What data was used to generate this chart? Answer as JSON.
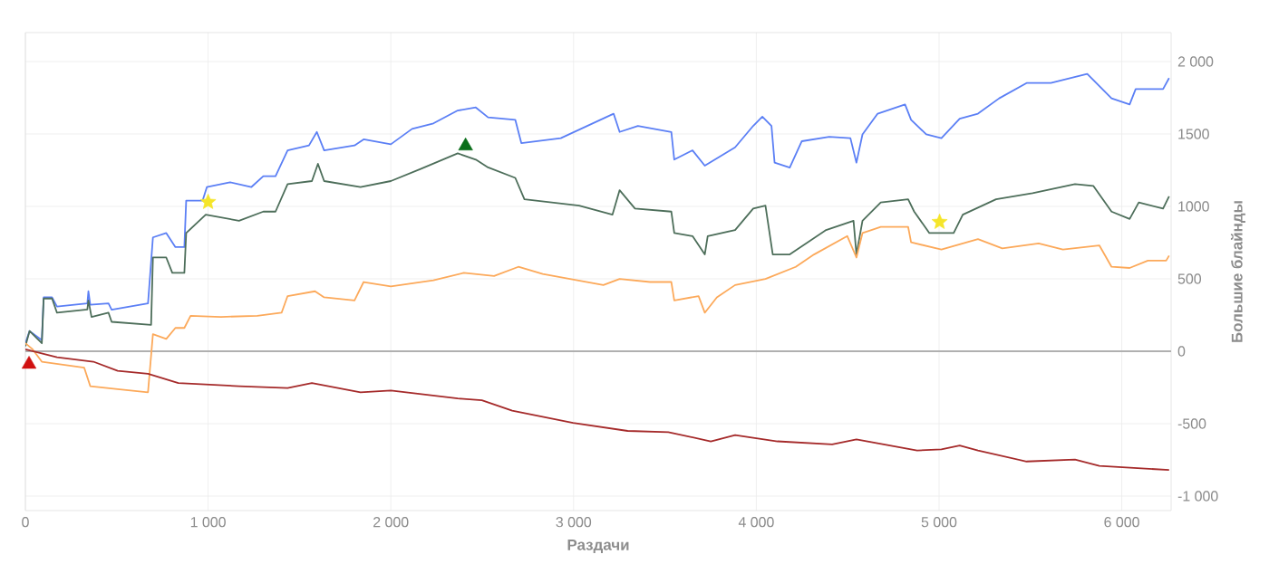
{
  "chart_data": {
    "type": "line",
    "xlabel": "Раздачи",
    "ylabel": "Большие блайнды",
    "grid": true,
    "marker": "none",
    "line_style": "solid",
    "xlim": [
      0,
      6270
    ],
    "ylim": [
      -1100,
      2200
    ],
    "xticks": [
      0,
      {
        "value": 1000,
        "label": "1 000"
      },
      {
        "value": 2000,
        "label": "2 000"
      },
      {
        "value": 3000,
        "label": "3 000"
      },
      {
        "value": 4000,
        "label": "4 000"
      },
      {
        "value": 5000,
        "label": "5 000"
      },
      {
        "value": 6000,
        "label": "6 000"
      }
    ],
    "yticks": [
      {
        "value": -1000,
        "label": "-1 000"
      },
      -500,
      0,
      500,
      1000,
      1500,
      {
        "value": 2000,
        "label": "2 000"
      }
    ],
    "ref_lines": [
      {
        "axis": "y",
        "value": 0,
        "color": "#b0b0b0"
      }
    ],
    "series": [
      {
        "color": "#5b7ff5",
        "x": [
          0,
          23,
          90,
          100,
          146,
          173,
          339,
          345,
          355,
          455,
          472,
          671,
          698,
          771,
          821,
          870,
          880,
          970,
          993,
          1120,
          1236,
          1302,
          1369,
          1435,
          1552,
          1595,
          1635,
          1801,
          1851,
          2000,
          2116,
          2233,
          2366,
          2465,
          2532,
          2681,
          2714,
          2930,
          3219,
          3252,
          3352,
          3535,
          3551,
          3651,
          3718,
          3884,
          3983,
          4033,
          4083,
          4100,
          4183,
          4249,
          4399,
          4515,
          4548,
          4581,
          4664,
          4814,
          4847,
          4930,
          5013,
          5113,
          5213,
          5329,
          5479,
          5612,
          5811,
          5944,
          6043,
          6076,
          6226,
          6259
        ],
        "values": [
          55,
          140,
          76,
          372,
          372,
          309,
          330,
          414,
          321,
          330,
          287,
          330,
          786,
          816,
          719,
          719,
          1040,
          1040,
          1133,
          1167,
          1133,
          1209,
          1209,
          1387,
          1421,
          1514,
          1387,
          1421,
          1463,
          1429,
          1535,
          1573,
          1662,
          1683,
          1615,
          1598,
          1437,
          1471,
          1640,
          1514,
          1556,
          1514,
          1323,
          1387,
          1281,
          1408,
          1556,
          1619,
          1556,
          1302,
          1268,
          1450,
          1480,
          1471,
          1302,
          1497,
          1640,
          1704,
          1598,
          1497,
          1471,
          1606,
          1640,
          1746,
          1852,
          1852,
          1915,
          1746,
          1704,
          1810,
          1810,
          1886
        ]
      },
      {
        "color": "#4d6e5a",
        "x": [
          0,
          23,
          90,
          100,
          146,
          173,
          339,
          345,
          362,
          455,
          472,
          688,
          698,
          771,
          804,
          870,
          880,
          987,
          1169,
          1302,
          1369,
          1435,
          1568,
          1601,
          1635,
          1834,
          2000,
          2166,
          2366,
          2465,
          2532,
          2681,
          2731,
          3030,
          3213,
          3252,
          3336,
          3535,
          3551,
          3651,
          3718,
          3734,
          3884,
          3983,
          4050,
          4090,
          4183,
          4382,
          4532,
          4548,
          4581,
          4681,
          4831,
          4864,
          4947,
          5080,
          5130,
          5312,
          5512,
          5744,
          5844,
          5944,
          6043,
          6093,
          6226,
          6259
        ],
        "values": [
          34,
          140,
          55,
          364,
          364,
          266,
          288,
          351,
          237,
          266,
          203,
          182,
          647,
          647,
          541,
          541,
          816,
          943,
          901,
          964,
          964,
          1154,
          1175,
          1294,
          1175,
          1133,
          1175,
          1260,
          1366,
          1323,
          1269,
          1197,
          1049,
          1006,
          943,
          1112,
          985,
          964,
          816,
          795,
          668,
          795,
          837,
          985,
          1006,
          668,
          668,
          837,
          901,
          668,
          901,
          1027,
          1049,
          964,
          816,
          816,
          943,
          1049,
          1091,
          1154,
          1142,
          964,
          913,
          1027,
          985,
          1070
        ]
      },
      {
        "color": "#fca95a",
        "x": [
          0,
          40,
          90,
          322,
          355,
          505,
          671,
          698,
          771,
          821,
          870,
          904,
          1070,
          1269,
          1402,
          1435,
          1585,
          1635,
          1801,
          1851,
          2000,
          2233,
          2399,
          2565,
          2698,
          2831,
          3163,
          3252,
          3419,
          3535,
          3551,
          3684,
          3718,
          3784,
          3884,
          4050,
          4216,
          4316,
          4498,
          4548,
          4581,
          4681,
          4831,
          4847,
          5013,
          5213,
          5346,
          5545,
          5678,
          5877,
          5944,
          6043,
          6143,
          6243,
          6259
        ],
        "values": [
          55,
          13,
          -72,
          -114,
          -241,
          -262,
          -283,
          118,
          85,
          161,
          161,
          245,
          237,
          245,
          266,
          381,
          414,
          372,
          351,
          478,
          448,
          490,
          541,
          520,
          583,
          533,
          457,
          499,
          478,
          478,
          351,
          381,
          266,
          372,
          457,
          499,
          583,
          668,
          795,
          647,
          816,
          858,
          858,
          752,
          702,
          774,
          710,
          744,
          702,
          731,
          583,
          575,
          626,
          626,
          660
        ]
      },
      {
        "color": "#a52a2a",
        "x": [
          0,
          173,
          372,
          505,
          671,
          837,
          1169,
          1435,
          1568,
          1834,
          2000,
          2366,
          2498,
          2664,
          2997,
          3296,
          3518,
          3751,
          3884,
          4116,
          4415,
          4548,
          4880,
          5013,
          5113,
          5213,
          5479,
          5744,
          5877,
          6259
        ],
        "values": [
          13,
          -42,
          -72,
          -135,
          -156,
          -220,
          -241,
          -254,
          -220,
          -283,
          -271,
          -326,
          -338,
          -410,
          -495,
          -550,
          -558,
          -622,
          -579,
          -622,
          -643,
          -609,
          -685,
          -677,
          -651,
          -685,
          -761,
          -748,
          -791,
          -820
        ]
      },
      {
        "type": "scatter",
        "marker": "triangle",
        "color": "#d01010",
        "x": [
          20
        ],
        "values": [
          -90
        ]
      },
      {
        "type": "scatter",
        "marker": "star",
        "color": "#f5e52a",
        "x": [
          1000,
          5003
        ],
        "values": [
          1030,
          892
        ]
      },
      {
        "type": "scatter",
        "marker": "triangle",
        "color": "#0a6e1a",
        "x": [
          2409
        ],
        "values": [
          1417
        ]
      }
    ]
  }
}
